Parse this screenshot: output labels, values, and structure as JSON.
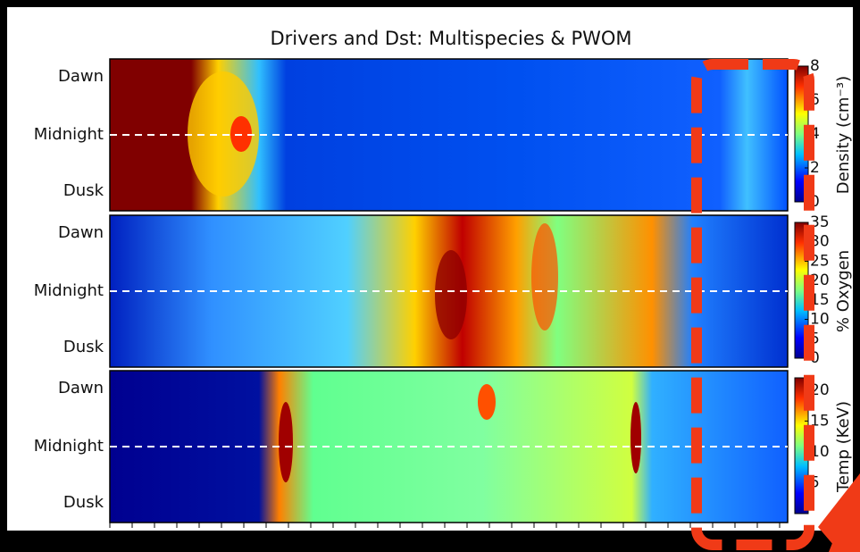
{
  "chart_data": {
    "type": "heatmap",
    "title": "Drivers and Dst: Multispecies & PWOM",
    "panels": [
      {
        "y_labels": [
          "Dawn",
          "Midnight",
          "Dusk"
        ],
        "colorbar": {
          "label": "Density (cm⁻³)",
          "lim": [
            0,
            8
          ],
          "ticks": [
            0,
            2,
            4,
            6,
            8
          ]
        }
      },
      {
        "y_labels": [
          "Dawn",
          "Midnight",
          "Dusk"
        ],
        "colorbar": {
          "label": "% Oxygen",
          "lim": [
            0,
            35
          ],
          "ticks": [
            0,
            5,
            10,
            15,
            20,
            25,
            30,
            35
          ]
        }
      },
      {
        "y_labels": [
          "Dawn",
          "Midnight",
          "Dusk"
        ],
        "colorbar": {
          "label": "Temp (KeV)",
          "lim": [
            0,
            22
          ],
          "ticks": [
            5,
            10,
            15,
            20
          ]
        }
      }
    ]
  }
}
